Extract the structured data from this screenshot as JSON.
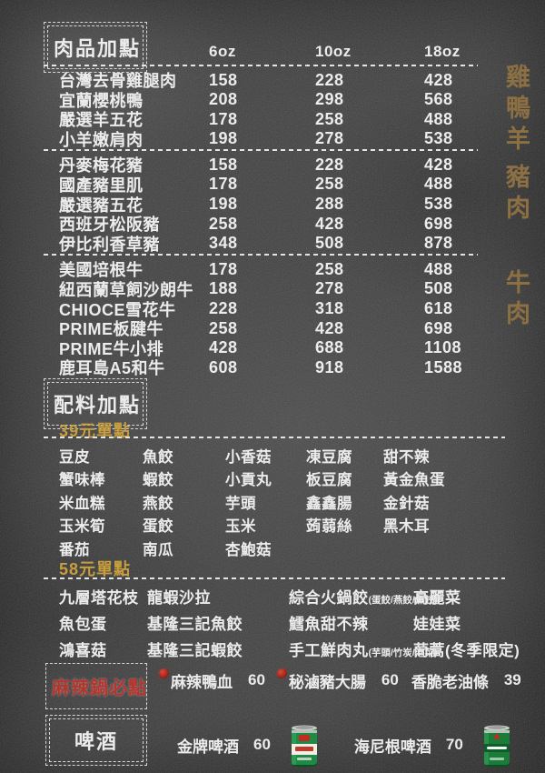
{
  "meat": {
    "title": "肉品加點",
    "columns": [
      "6oz",
      "10oz",
      "18oz"
    ],
    "side_labels": [
      "雞鴨羊",
      "豬肉",
      "牛肉"
    ],
    "groups": [
      {
        "category": "雞鴨羊",
        "rows": [
          [
            "台灣去骨雞腿肉",
            "158",
            "228",
            "428"
          ],
          [
            "宜蘭櫻桃鴨",
            "208",
            "298",
            "568"
          ],
          [
            "嚴選羊五花",
            "178",
            "258",
            "488"
          ],
          [
            "小羊嫩肩肉",
            "198",
            "278",
            "538"
          ]
        ]
      },
      {
        "category": "豬肉",
        "rows": [
          [
            "丹麥梅花豬",
            "158",
            "228",
            "428"
          ],
          [
            "國產豬里肌",
            "178",
            "258",
            "488"
          ],
          [
            "嚴選豬五花",
            "198",
            "288",
            "538"
          ],
          [
            "西班牙松阪豬",
            "258",
            "428",
            "698"
          ],
          [
            "伊比利香草豬",
            "348",
            "508",
            "878"
          ]
        ]
      },
      {
        "category": "牛肉",
        "rows": [
          [
            "美國培根牛",
            "178",
            "258",
            "488"
          ],
          [
            "紐西蘭草飼沙朗牛",
            "188",
            "278",
            "508"
          ],
          [
            "CHIOCE雪花牛",
            "228",
            "318",
            "618"
          ],
          [
            "PRIME板腱牛",
            "258",
            "428",
            "698"
          ],
          [
            "PRIME牛小排",
            "428",
            "688",
            "1108"
          ],
          [
            "鹿耳島A5和牛",
            "608",
            "918",
            "1588"
          ]
        ]
      }
    ]
  },
  "sides": {
    "title": "配料加點",
    "tier39": {
      "label": "39元單點",
      "rows": [
        [
          "豆皮",
          "魚餃",
          "小香菇",
          "凍豆腐",
          "甜不辣"
        ],
        [
          "蟹味棒",
          "蝦餃",
          "小貢丸",
          "板豆腐",
          "黃金魚蛋"
        ],
        [
          "米血糕",
          "燕餃",
          "芋頭",
          "鑫鑫腸",
          "金針菇"
        ],
        [
          "玉米筍",
          "蛋餃",
          "玉米",
          "蒟蒻絲",
          "黑木耳"
        ],
        [
          "番茄",
          "南瓜",
          "杏鮑菇",
          "",
          ""
        ]
      ]
    },
    "tier58": {
      "label": "58元單點",
      "rows": [
        [
          {
            "name": "九層塔花枝"
          },
          {
            "name": "龍蝦沙拉"
          },
          {
            "name": "綜合火鍋餃",
            "note": "(蛋餃/燕餃/魚餃)"
          },
          {
            "name": "高麗菜"
          }
        ],
        [
          {
            "name": "魚包蛋"
          },
          {
            "name": "基隆三記魚餃"
          },
          {
            "name": "鱈魚甜不辣"
          },
          {
            "name": "娃娃菜"
          }
        ],
        [
          {
            "name": "鴻喜菇"
          },
          {
            "name": "基隆三記蝦餃"
          },
          {
            "name": "手工鮮肉丸",
            "note": "(芋頭/竹炭/泡菜)"
          },
          {
            "name": "茼蒿(冬季限定)"
          }
        ]
      ]
    }
  },
  "spicy": {
    "title": "麻辣鍋必點",
    "items": [
      {
        "name": "麻辣鴨血",
        "price": "60",
        "chili": true
      },
      {
        "name": "秘滷豬大腸",
        "price": "60",
        "chili": true
      },
      {
        "name": "香脆老油條",
        "price": "39",
        "chili": false
      }
    ]
  },
  "beer": {
    "title": "啤酒",
    "items": [
      {
        "name": "金牌啤酒",
        "price": "60",
        "can": "gold-medal-beer-can"
      },
      {
        "name": "海尼根啤酒",
        "price": "70",
        "can": "heineken-beer-can"
      }
    ]
  },
  "colors": {
    "gold": "#c89e3e",
    "bronze": "#8c7044",
    "red": "#b5352d",
    "chalk": "#ececec"
  }
}
